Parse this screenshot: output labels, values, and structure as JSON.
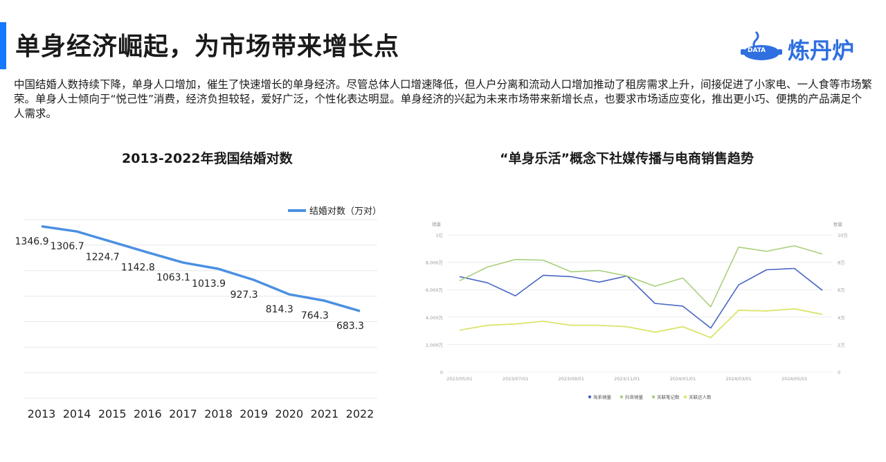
{
  "header": {
    "title": "单身经济崛起，为市场带来增长点",
    "logo_text": "炼丹炉",
    "logo_badge": "DATA"
  },
  "intro": "中国结婚人数持续下降，单身人口增加，催生了快速增长的单身经济。尽管总体人口增速降低，但人户分离和流动人口增加推动了租房需求上升，间接促进了小家电、一人食等市场繁荣。单身人士倾向于“悦己性”消费，经济负担较轻，爱好广泛，个性化表达明显。单身经济的兴起为未来市场带来新增长点，也要求市场适应变化，推出更小巧、便携的产品满足个人需求。",
  "colors": {
    "accent": "#1677ff",
    "line_main": "#4a90e2",
    "brand": "#2f6fe0"
  },
  "chart_data": [
    {
      "type": "line",
      "title": "2013-2022年我国结婚对数",
      "legend_position": "top-right",
      "grid": true,
      "categories": [
        "2013",
        "2014",
        "2015",
        "2016",
        "2017",
        "2018",
        "2019",
        "2020",
        "2021",
        "2022"
      ],
      "series": [
        {
          "name": "结婚对数（万对）",
          "values": [
            1346.9,
            1306.7,
            1224.7,
            1142.8,
            1063.1,
            1013.9,
            927.3,
            814.3,
            764.3,
            683.3
          ],
          "color": "#4a90e2"
        }
      ],
      "ylim": [
        0,
        1400
      ]
    },
    {
      "type": "line",
      "title": "“单身乐活”概念下社媒传播与电商销售趋势",
      "legend_position": "bottom",
      "grid": true,
      "y_left_label": "销量",
      "y_right_label": "数量",
      "y_left_ticks": [
        "0",
        "2,000万",
        "4,000万",
        "6,000万",
        "8,000万",
        "1亿"
      ],
      "y_right_ticks": [
        "0",
        "2万",
        "4万",
        "6万",
        "8万",
        "10万"
      ],
      "x_ticks": [
        "2023/05/01",
        "2023/07/01",
        "2023/09/01",
        "2023/11/01",
        "2024/01/01",
        "2024/03/01",
        "2024/05/01"
      ],
      "x": [
        "2023/05",
        "2023/06",
        "2023/07",
        "2023/08",
        "2023/09",
        "2023/10",
        "2023/11",
        "2023/12",
        "2024/01",
        "2024/02",
        "2024/03",
        "2024/04",
        "2024/05",
        "2024/06"
      ],
      "series": [
        {
          "name": "淘系销量",
          "axis": "left",
          "color": "#4766c4",
          "values": [
            6950,
            6500,
            5550,
            7050,
            6950,
            6550,
            7000,
            5000,
            4800,
            3200,
            6350,
            7450,
            7550,
            5950
          ]
        },
        {
          "name": "抖音销量",
          "axis": "left",
          "color": "#a8cf7a",
          "values": [
            6650,
            7650,
            8200,
            8150,
            7300,
            7400,
            7000,
            6250,
            6850,
            4750,
            9100,
            8800,
            9200,
            8600
          ]
        },
        {
          "name": "关联笔记数",
          "axis": "right",
          "color": "#a8cf7a",
          "values": [
            3.05,
            3.4,
            3.5,
            3.7,
            3.4,
            3.4,
            3.3,
            2.9,
            3.3,
            2.5,
            4.5,
            4.45,
            4.6,
            4.2
          ]
        },
        {
          "name": "关联达人数",
          "axis": "right",
          "color": "#dfe566",
          "values": [
            3.05,
            3.4,
            3.5,
            3.7,
            3.4,
            3.4,
            3.3,
            2.9,
            3.3,
            2.5,
            4.5,
            4.45,
            4.6,
            4.2
          ]
        }
      ],
      "ylim_left": [
        0,
        10000
      ],
      "ylim_right": [
        0,
        10
      ]
    }
  ]
}
